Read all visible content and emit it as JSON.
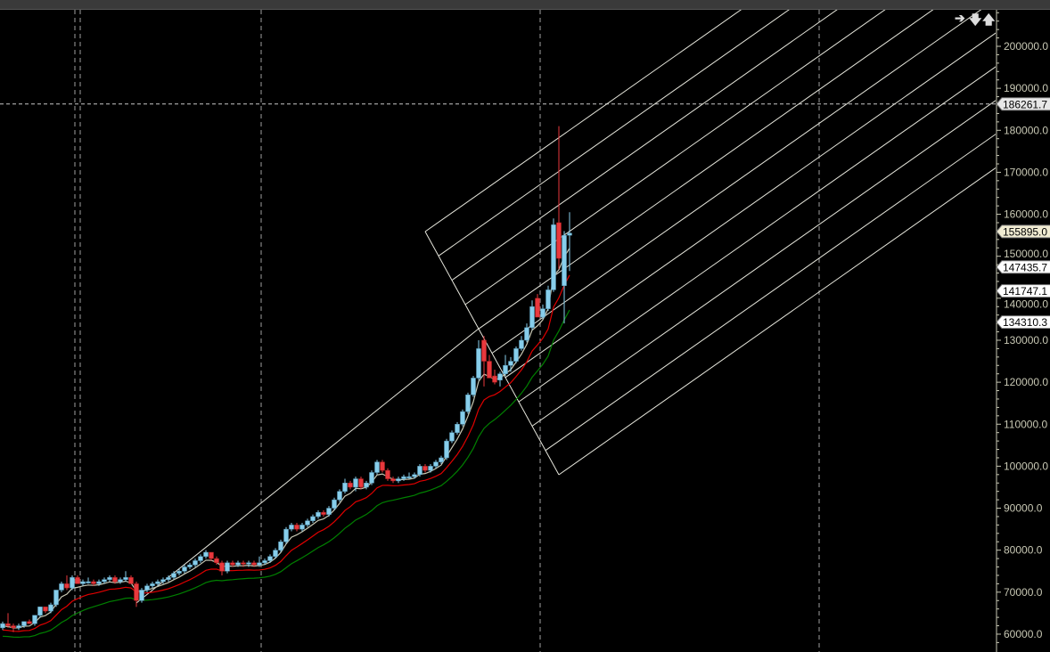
{
  "toolbar": {
    "icons": [
      "arrow-right-icon",
      "arrow-down-icon",
      "arrow-up-icon"
    ],
    "glyphs": [
      "➔",
      "🡇",
      "🡅"
    ]
  },
  "colors": {
    "background": "#000000",
    "bull": "#87CEEB",
    "bear": "#E8383D",
    "grid": "#C8C8C8",
    "axis_text": "#C8C8B4",
    "drawing": "#E6E6DC",
    "ma_fast": "#C8C8B4",
    "ma_mid": "#E00000",
    "ma_slow": "#008000"
  },
  "chart_data": {
    "type": "candlestick",
    "ylim": [
      58000,
      208000
    ],
    "y_ticks": [
      "200000.0",
      "190000.0",
      "180000.0",
      "170000.0",
      "160000.0",
      "150000.0",
      "140000.0",
      "130000.0",
      "120000.0",
      "110000.0",
      "100000.0",
      "90000.0",
      "80000.0",
      "70000.0",
      "60000.0"
    ],
    "price_labels": [
      {
        "value": "186261.7",
        "style": "crosshair"
      },
      {
        "value": "155895.0",
        "style": "bid"
      },
      {
        "value": "147435.7",
        "style": "ma"
      },
      {
        "value": "141747.1",
        "style": "ma"
      },
      {
        "value": "134310.3",
        "style": "ma"
      }
    ],
    "crosshair_price": 186261.7,
    "moving_averages": [
      "ma_fast",
      "ma_mid",
      "ma_slow"
    ],
    "candles": [
      [
        61500,
        63000,
        61000,
        62500
      ],
      [
        62500,
        65000,
        61500,
        62000
      ],
      [
        62000,
        62500,
        60500,
        61500
      ],
      [
        61500,
        62500,
        61000,
        62000
      ],
      [
        62000,
        63000,
        61500,
        63000
      ],
      [
        63000,
        63500,
        62500,
        62500
      ],
      [
        62500,
        64500,
        62000,
        64500
      ],
      [
        64500,
        66500,
        64000,
        66500
      ],
      [
        66500,
        66500,
        65000,
        65500
      ],
      [
        65500,
        67500,
        65000,
        67000
      ],
      [
        67000,
        70500,
        66500,
        70500
      ],
      [
        70500,
        72500,
        70000,
        72000
      ],
      [
        72000,
        74000,
        70500,
        71000
      ],
      [
        71000,
        74000,
        70500,
        73500
      ],
      [
        73500,
        74000,
        72000,
        72000
      ],
      [
        72000,
        73000,
        71500,
        72500
      ],
      [
        72500,
        73500,
        72000,
        72500
      ],
      [
        72500,
        73000,
        71500,
        72000
      ],
      [
        72000,
        73000,
        71500,
        72500
      ],
      [
        72500,
        73500,
        72000,
        73000
      ],
      [
        73000,
        74000,
        72500,
        73500
      ],
      [
        73500,
        74000,
        72000,
        72500
      ],
      [
        72500,
        73500,
        72000,
        73000
      ],
      [
        73000,
        75000,
        72500,
        73500
      ],
      [
        73500,
        74000,
        72000,
        72000
      ],
      [
        72000,
        72500,
        66500,
        68000
      ],
      [
        68000,
        71000,
        67500,
        70500
      ],
      [
        70500,
        72000,
        70000,
        71500
      ],
      [
        71500,
        72500,
        71000,
        72000
      ],
      [
        72000,
        73000,
        71500,
        72500
      ],
      [
        72500,
        73500,
        72000,
        73000
      ],
      [
        73000,
        74000,
        72500,
        73500
      ],
      [
        73500,
        75000,
        73000,
        74500
      ],
      [
        74500,
        75500,
        74000,
        75000
      ],
      [
        75000,
        76500,
        74500,
        76000
      ],
      [
        76000,
        77000,
        75500,
        76500
      ],
      [
        76500,
        78000,
        76000,
        77500
      ],
      [
        77500,
        79000,
        77000,
        78500
      ],
      [
        78500,
        80000,
        78000,
        79500
      ],
      [
        79500,
        79500,
        77500,
        78000
      ],
      [
        78000,
        78500,
        76500,
        77000
      ],
      [
        77000,
        77500,
        74000,
        75000
      ],
      [
        75000,
        77500,
        74500,
        77000
      ],
      [
        77000,
        77500,
        76000,
        76500
      ],
      [
        76500,
        77500,
        76000,
        77000
      ],
      [
        77000,
        77500,
        76000,
        76800
      ],
      [
        76800,
        77500,
        76000,
        77000
      ],
      [
        77000,
        77500,
        76000,
        76500
      ],
      [
        76500,
        78500,
        76000,
        77000
      ],
      [
        77000,
        78000,
        76500,
        77500
      ],
      [
        77500,
        79000,
        77000,
        78500
      ],
      [
        78500,
        80500,
        78000,
        80000
      ],
      [
        80000,
        82500,
        79500,
        82000
      ],
      [
        82000,
        85500,
        81500,
        85000
      ],
      [
        85000,
        86500,
        84500,
        86000
      ],
      [
        86000,
        86500,
        84500,
        85000
      ],
      [
        85000,
        86500,
        84500,
        86000
      ],
      [
        86000,
        87500,
        85500,
        87000
      ],
      [
        87000,
        88500,
        86500,
        88000
      ],
      [
        88000,
        89500,
        87500,
        89000
      ],
      [
        89000,
        89500,
        88000,
        88500
      ],
      [
        88500,
        90500,
        88000,
        90000
      ],
      [
        90000,
        92500,
        89500,
        92000
      ],
      [
        92000,
        94500,
        91500,
        94000
      ],
      [
        94000,
        97000,
        93500,
        96000
      ],
      [
        96000,
        96500,
        94500,
        95000
      ],
      [
        95000,
        97500,
        94000,
        97000
      ],
      [
        97000,
        97500,
        94500,
        95000
      ],
      [
        95000,
        96500,
        94500,
        96000
      ],
      [
        96000,
        99000,
        95500,
        98500
      ],
      [
        98500,
        101500,
        98000,
        101000
      ],
      [
        101000,
        101500,
        98500,
        99000
      ],
      [
        99000,
        99500,
        96500,
        97000
      ],
      [
        97000,
        97500,
        96000,
        96500
      ],
      [
        96500,
        97500,
        96000,
        97000
      ],
      [
        97000,
        98000,
        96500,
        97500
      ],
      [
        97500,
        98500,
        97000,
        97500
      ],
      [
        97500,
        98500,
        97000,
        98000
      ],
      [
        98000,
        100500,
        97500,
        100000
      ],
      [
        100000,
        100500,
        98500,
        99000
      ],
      [
        99000,
        100500,
        98500,
        100000
      ],
      [
        100000,
        101500,
        99500,
        101000
      ],
      [
        101000,
        102500,
        100500,
        102000
      ],
      [
        102000,
        106500,
        101500,
        106000
      ],
      [
        106000,
        108500,
        105500,
        108000
      ],
      [
        108000,
        110500,
        107500,
        110000
      ],
      [
        110000,
        113500,
        109500,
        113000
      ],
      [
        113000,
        117500,
        112500,
        117000
      ],
      [
        117000,
        121500,
        116500,
        121000
      ],
      [
        121000,
        130000,
        120500,
        128000
      ],
      [
        130000,
        131000,
        119000,
        125000
      ],
      [
        125000,
        126500,
        121500,
        121000
      ],
      [
        121500,
        123000,
        119500,
        120000
      ],
      [
        120500,
        122500,
        119000,
        122000
      ],
      [
        122000,
        126500,
        121500,
        124000
      ],
      [
        124000,
        126000,
        122500,
        125000
      ],
      [
        125000,
        128500,
        124500,
        128000
      ],
      [
        128000,
        131000,
        127500,
        130000
      ],
      [
        130000,
        134000,
        129500,
        133000
      ],
      [
        133000,
        139500,
        132500,
        138000
      ],
      [
        140000,
        141000,
        135500,
        135500
      ],
      [
        135500,
        138500,
        135000,
        137500
      ],
      [
        137500,
        143000,
        137000,
        142000
      ],
      [
        142000,
        159000,
        141500,
        157500
      ],
      [
        158000,
        181000,
        147000,
        149500
      ],
      [
        143000,
        156000,
        134000,
        155000
      ],
      [
        155000,
        160500,
        146500,
        155500
      ]
    ]
  }
}
